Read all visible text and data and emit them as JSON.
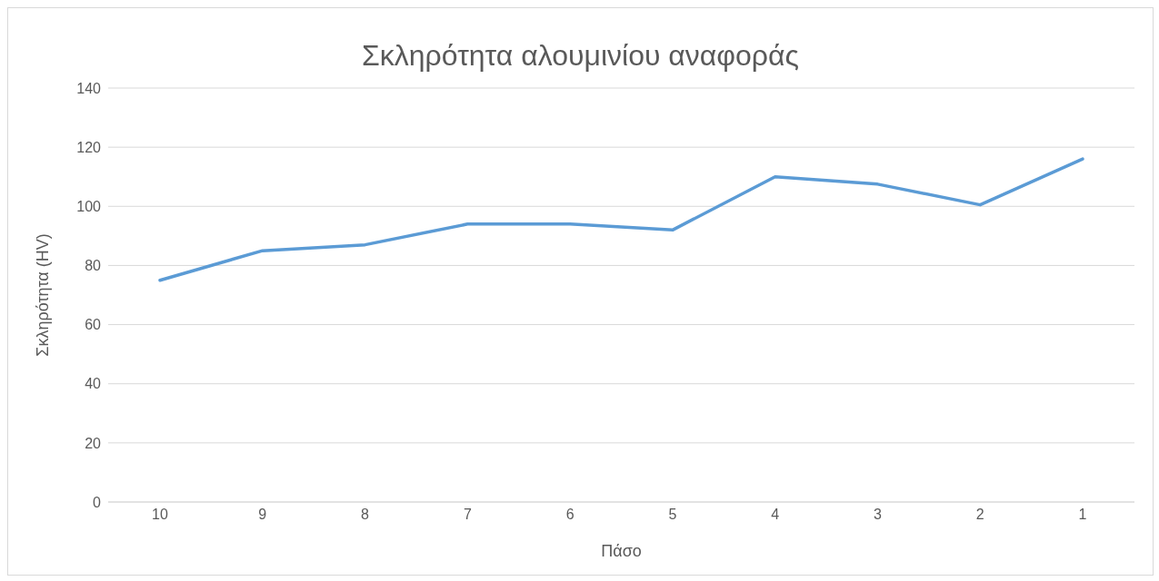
{
  "chart_data": {
    "type": "line",
    "title": "Σκληρότητα αλουμινίου αναφοράς",
    "xlabel": "Πάσο",
    "ylabel": "Σκληρότητα (HV)",
    "categories": [
      "10",
      "9",
      "8",
      "7",
      "6",
      "5",
      "4",
      "3",
      "2",
      "1"
    ],
    "series": [
      {
        "color": "#5b9bd5",
        "values": [
          75,
          85,
          87,
          94,
          94,
          92,
          110,
          107.5,
          100.5,
          116
        ]
      }
    ],
    "ylim": [
      0,
      140
    ],
    "yticks": [
      0,
      20,
      40,
      60,
      80,
      100,
      120,
      140
    ],
    "grid": "y",
    "legend": false,
    "marker": "none",
    "line_style": "solid"
  }
}
